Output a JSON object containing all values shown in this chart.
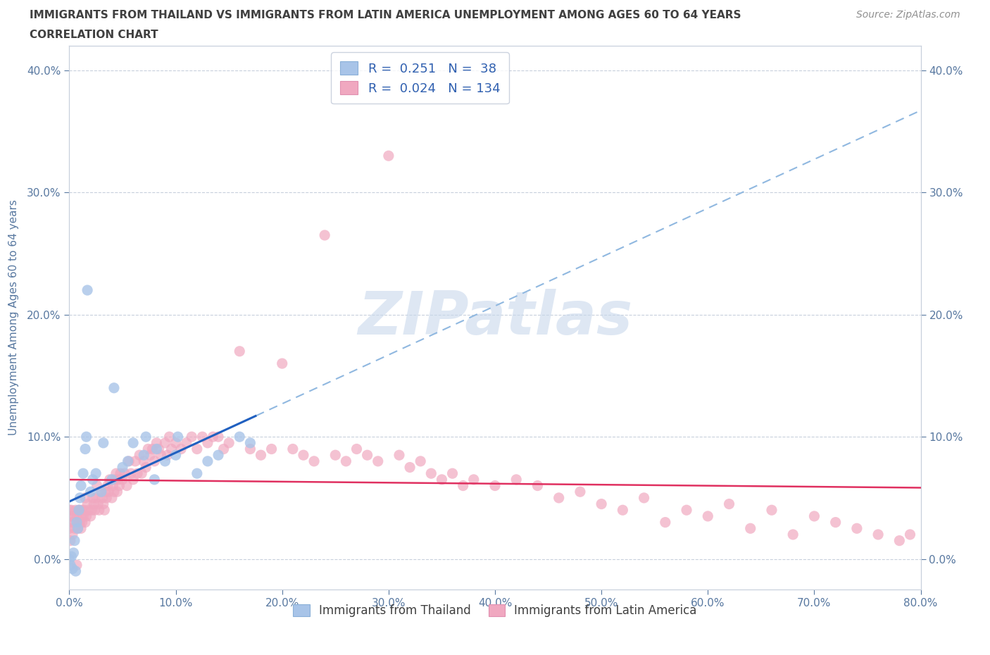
{
  "title_line1": "IMMIGRANTS FROM THAILAND VS IMMIGRANTS FROM LATIN AMERICA UNEMPLOYMENT AMONG AGES 60 TO 64 YEARS",
  "title_line2": "CORRELATION CHART",
  "source": "Source: ZipAtlas.com",
  "ylabel": "Unemployment Among Ages 60 to 64 years",
  "R_thailand": 0.251,
  "N_thailand": 38,
  "R_latin": 0.024,
  "N_latin": 134,
  "thailand_color": "#a8c4e8",
  "latin_color": "#f0a8c0",
  "trend_thailand_solid_color": "#2060c0",
  "trend_thailand_dash_color": "#90b8e0",
  "trend_latin_color": "#e03060",
  "xmin": 0.0,
  "xmax": 0.8,
  "ymin": -0.025,
  "ymax": 0.42,
  "xticks": [
    0.0,
    0.1,
    0.2,
    0.3,
    0.4,
    0.5,
    0.6,
    0.7,
    0.8
  ],
  "yticks": [
    0.0,
    0.1,
    0.2,
    0.3,
    0.4
  ],
  "grid_color": "#c8d0dc",
  "background_color": "#ffffff",
  "title_color": "#404040",
  "axis_label_color": "#5878a0",
  "watermark_color": "#c8d8ec",
  "thailand_x": [
    0.0,
    0.001,
    0.002,
    0.003,
    0.004,
    0.005,
    0.006,
    0.007,
    0.008,
    0.009,
    0.01,
    0.011,
    0.013,
    0.015,
    0.016,
    0.017,
    0.02,
    0.022,
    0.025,
    0.03,
    0.032,
    0.04,
    0.042,
    0.05,
    0.055,
    0.06,
    0.07,
    0.072,
    0.08,
    0.082,
    0.09,
    0.1,
    0.102,
    0.12,
    0.13,
    0.14,
    0.16,
    0.17
  ],
  "thailand_y": [
    0.0,
    -0.005,
    0.002,
    -0.008,
    0.005,
    0.015,
    -0.01,
    0.03,
    0.025,
    0.04,
    0.05,
    0.06,
    0.07,
    0.09,
    0.1,
    0.22,
    0.055,
    0.065,
    0.07,
    0.055,
    0.095,
    0.065,
    0.14,
    0.075,
    0.08,
    0.095,
    0.085,
    0.1,
    0.065,
    0.09,
    0.08,
    0.085,
    0.1,
    0.07,
    0.08,
    0.085,
    0.1,
    0.095
  ],
  "latin_x": [
    0.0,
    0.0,
    0.001,
    0.001,
    0.002,
    0.003,
    0.003,
    0.004,
    0.005,
    0.005,
    0.006,
    0.007,
    0.007,
    0.008,
    0.009,
    0.009,
    0.01,
    0.01,
    0.011,
    0.011,
    0.012,
    0.012,
    0.013,
    0.014,
    0.015,
    0.015,
    0.016,
    0.017,
    0.018,
    0.02,
    0.021,
    0.022,
    0.023,
    0.024,
    0.025,
    0.026,
    0.027,
    0.028,
    0.03,
    0.031,
    0.032,
    0.033,
    0.034,
    0.035,
    0.036,
    0.037,
    0.038,
    0.04,
    0.041,
    0.042,
    0.043,
    0.044,
    0.045,
    0.046,
    0.047,
    0.048,
    0.05,
    0.052,
    0.054,
    0.056,
    0.058,
    0.06,
    0.062,
    0.064,
    0.066,
    0.068,
    0.07,
    0.072,
    0.074,
    0.076,
    0.078,
    0.08,
    0.082,
    0.084,
    0.086,
    0.09,
    0.092,
    0.094,
    0.096,
    0.1,
    0.105,
    0.11,
    0.115,
    0.12,
    0.125,
    0.13,
    0.135,
    0.14,
    0.145,
    0.15,
    0.16,
    0.17,
    0.18,
    0.19,
    0.2,
    0.21,
    0.22,
    0.23,
    0.24,
    0.25,
    0.26,
    0.27,
    0.28,
    0.29,
    0.3,
    0.31,
    0.32,
    0.33,
    0.34,
    0.35,
    0.36,
    0.37,
    0.38,
    0.4,
    0.42,
    0.44,
    0.46,
    0.48,
    0.5,
    0.52,
    0.54,
    0.56,
    0.58,
    0.6,
    0.62,
    0.64,
    0.66,
    0.68,
    0.7,
    0.72,
    0.74,
    0.76,
    0.78,
    0.79
  ],
  "latin_y": [
    0.04,
    0.025,
    0.035,
    0.015,
    0.04,
    0.03,
    0.02,
    0.035,
    0.03,
    0.025,
    0.04,
    0.035,
    -0.005,
    0.025,
    0.03,
    0.04,
    0.03,
    0.04,
    0.025,
    0.035,
    0.04,
    0.03,
    0.035,
    0.04,
    0.03,
    0.05,
    0.035,
    0.045,
    0.04,
    0.035,
    0.04,
    0.05,
    0.045,
    0.04,
    0.05,
    0.06,
    0.045,
    0.04,
    0.055,
    0.05,
    0.045,
    0.04,
    0.055,
    0.05,
    0.06,
    0.055,
    0.065,
    0.05,
    0.06,
    0.055,
    0.065,
    0.07,
    0.055,
    0.065,
    0.06,
    0.07,
    0.065,
    0.07,
    0.06,
    0.08,
    0.07,
    0.065,
    0.08,
    0.07,
    0.085,
    0.07,
    0.08,
    0.075,
    0.09,
    0.085,
    0.09,
    0.08,
    0.095,
    0.09,
    0.085,
    0.095,
    0.085,
    0.1,
    0.09,
    0.095,
    0.09,
    0.095,
    0.1,
    0.09,
    0.1,
    0.095,
    0.1,
    0.1,
    0.09,
    0.095,
    0.17,
    0.09,
    0.085,
    0.09,
    0.16,
    0.09,
    0.085,
    0.08,
    0.265,
    0.085,
    0.08,
    0.09,
    0.085,
    0.08,
    0.33,
    0.085,
    0.075,
    0.08,
    0.07,
    0.065,
    0.07,
    0.06,
    0.065,
    0.06,
    0.065,
    0.06,
    0.05,
    0.055,
    0.045,
    0.04,
    0.05,
    0.03,
    0.04,
    0.035,
    0.045,
    0.025,
    0.04,
    0.02,
    0.035,
    0.03,
    0.025,
    0.02,
    0.015,
    0.02
  ]
}
